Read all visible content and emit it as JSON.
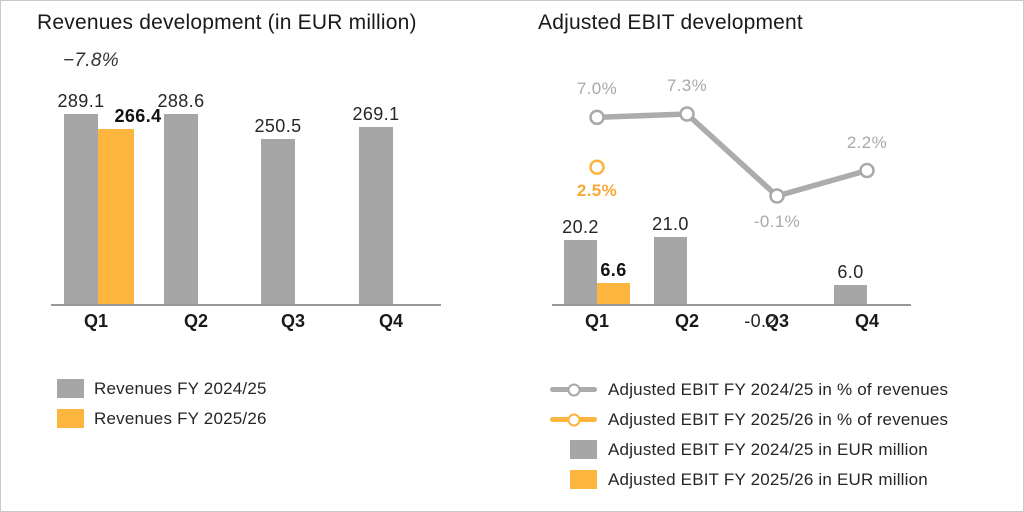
{
  "colors": {
    "gray": "#a6a6a6",
    "orange": "#fcb53f",
    "line_gray": "#acacac",
    "pct_label_gray": "#a9a9a9",
    "dark_text": "#262626",
    "axis_gray": "#999999"
  },
  "left_chart": {
    "title": "Revenues development (in EUR million)",
    "delta_label": "−7.8%",
    "legend": [
      {
        "label": "Revenues FY 2024/25",
        "color": "gray",
        "marker": "square"
      },
      {
        "label": "Revenues FY 2025/26",
        "color": "orange",
        "marker": "square"
      }
    ]
  },
  "right_chart": {
    "title": "Adjusted EBIT development",
    "legend": [
      {
        "label": "Adjusted EBIT FY 2024/25 in % of revenues",
        "color": "gray",
        "marker": "line"
      },
      {
        "label": "Adjusted EBIT FY 2025/26 in % of revenues",
        "color": "orange",
        "marker": "line"
      },
      {
        "label": "Adjusted EBIT FY 2024/25 in EUR million",
        "color": "gray",
        "marker": "square"
      },
      {
        "label": "Adjusted EBIT FY 2025/26 in EUR million",
        "color": "orange",
        "marker": "square"
      }
    ]
  },
  "chart_data": [
    {
      "type": "bar",
      "title": "Revenues development (in EUR million)",
      "categories": [
        "Q1",
        "Q2",
        "Q3",
        "Q4"
      ],
      "series": [
        {
          "name": "Revenues FY 2024/25",
          "color": "gray",
          "values": [
            289.1,
            288.6,
            250.5,
            269.1
          ]
        },
        {
          "name": "Revenues FY 2025/26",
          "color": "orange",
          "values": [
            266.4,
            null,
            null,
            null
          ]
        }
      ],
      "annotation": "−7.8%",
      "ylabel": "EUR million",
      "ylim": [
        0,
        300
      ],
      "grid": false,
      "legend_position": "bottom-left"
    },
    {
      "type": "bar+line",
      "title": "Adjusted EBIT development",
      "categories": [
        "Q1",
        "Q2",
        "Q3",
        "Q4"
      ],
      "bar_series": [
        {
          "name": "Adjusted EBIT FY 2024/25 in EUR million",
          "color": "gray",
          "values": [
            20.2,
            21.0,
            -0.2,
            6.0
          ]
        },
        {
          "name": "Adjusted EBIT FY 2025/26 in EUR million",
          "color": "orange",
          "values": [
            6.6,
            null,
            null,
            null
          ]
        }
      ],
      "line_series": [
        {
          "name": "Adjusted EBIT FY 2024/25 in % of revenues",
          "color": "gray",
          "values": [
            7.0,
            7.3,
            -0.1,
            2.2
          ],
          "labels": [
            "7.0%",
            "7.3%",
            "-0.1%",
            "2.2%"
          ]
        },
        {
          "name": "Adjusted EBIT FY 2025/26 in % of revenues",
          "color": "orange",
          "values": [
            2.5,
            null,
            null,
            null
          ],
          "labels": [
            "2.5%",
            null,
            null,
            null
          ]
        }
      ],
      "bar_ylim": [
        0,
        25
      ],
      "line_ylim": [
        -1,
        8
      ],
      "grid": false,
      "legend_position": "bottom-left"
    }
  ]
}
